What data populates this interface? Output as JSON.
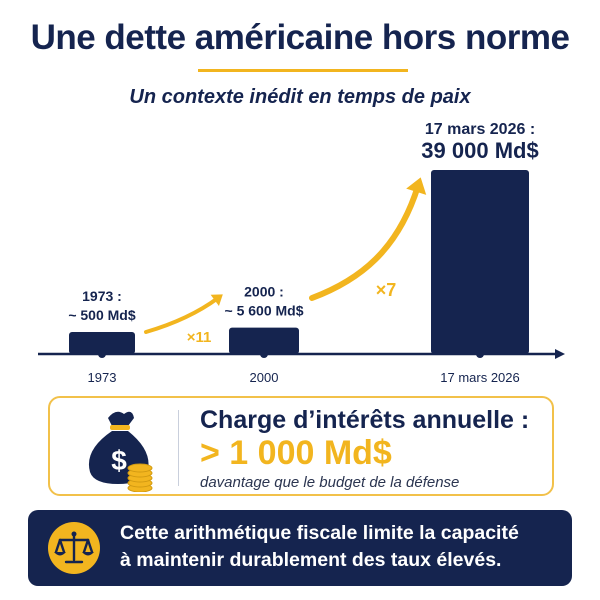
{
  "header": {
    "title": "Une dette américaine hors norme",
    "subtitle": "Un contexte inédit en temps de paix"
  },
  "chart_data": {
    "type": "bar",
    "categories": [
      "1973",
      "2000",
      "17 mars 2026"
    ],
    "values": [
      500,
      5600,
      39000
    ],
    "unit": "Md$",
    "data_labels": [
      [
        "1973 :",
        "~ 500 Md$"
      ],
      [
        "2000 :",
        "~ 5 600 Md$"
      ],
      [
        "17 mars 2026 :",
        "39 000 Md$"
      ]
    ],
    "multipliers": [
      "×11",
      "×7"
    ],
    "colors": {
      "bar": "#15244f",
      "accent": "#f2b51f",
      "axis": "#15244f"
    }
  },
  "interest": {
    "title": "Charge d’intérêts annuelle :",
    "value": "> 1 000 Md$",
    "note": "davantage que le budget de la défense",
    "icon": "money-bag-icon"
  },
  "footer": {
    "line1": "Cette arithmétique fiscale limite la capacité",
    "line2": "à maintenir durablement des taux élevés.",
    "icon": "scale-icon"
  }
}
